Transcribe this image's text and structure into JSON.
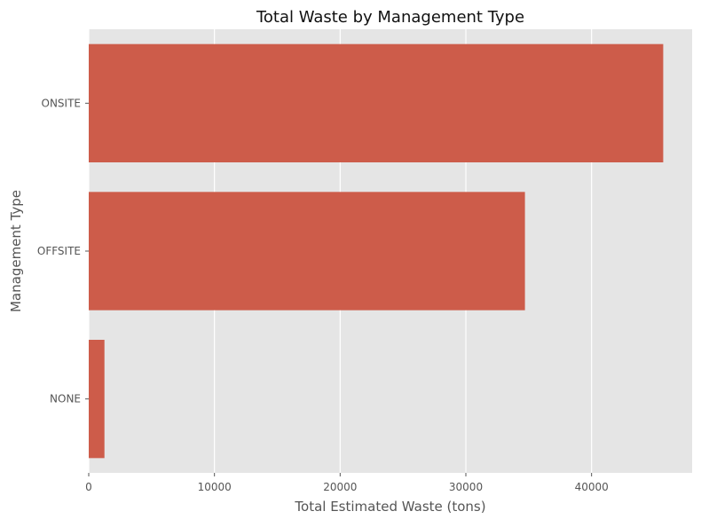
{
  "chart_data": {
    "type": "bar",
    "orientation": "horizontal",
    "title": "Total Waste by Management Type",
    "xlabel": "Total Estimated Waste (tons)",
    "ylabel": "Management Type",
    "categories": [
      "ONSITE",
      "OFFSITE",
      "NONE"
    ],
    "values": [
      45700,
      34700,
      1250
    ],
    "xlim": [
      0,
      48000
    ],
    "xticks": [
      0,
      10000,
      20000,
      30000,
      40000
    ],
    "xtick_labels": [
      "0",
      "10000",
      "20000",
      "30000",
      "40000"
    ],
    "grid": true,
    "bar_color": "#cd5c4a",
    "background_color": "#e5e5e5",
    "grid_color": "#ffffff"
  }
}
